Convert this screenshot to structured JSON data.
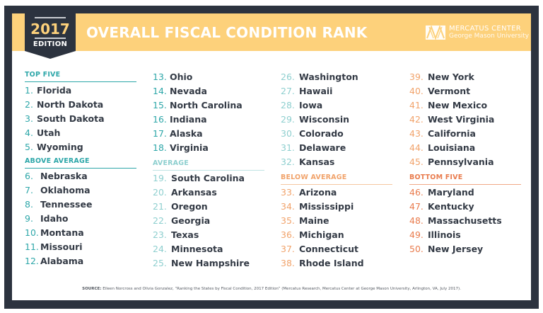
{
  "badge": {
    "year": "2017",
    "edition": "EDITION"
  },
  "title": "OVERALL FISCAL CONDITION RANK",
  "logo": {
    "icon": "mercatus-logo-icon",
    "line1": "MERCATUS CENTER",
    "line2": "George Mason University"
  },
  "colors": {
    "frame": "#2c333f",
    "band": "#fdd17b",
    "top_five": "#2ea7a9",
    "above_average": "#2ea7a9",
    "average": "#8ecfcf",
    "below_average": "#f1a36b",
    "bottom_five": "#e97c4e",
    "state_text": "#333a45"
  },
  "sections": {
    "top_five": {
      "label": "TOP FIVE",
      "items": [
        {
          "rank": "1.",
          "state": "Florida"
        },
        {
          "rank": "2.",
          "state": "North Dakota"
        },
        {
          "rank": "3.",
          "state": "South Dakota"
        },
        {
          "rank": "4.",
          "state": "Utah"
        },
        {
          "rank": "5.",
          "state": "Wyoming"
        }
      ]
    },
    "above_average": {
      "label": "ABOVE AVERAGE",
      "items": [
        {
          "rank": "6.",
          "state": "Nebraska"
        },
        {
          "rank": "7.",
          "state": "Oklahoma"
        },
        {
          "rank": "8.",
          "state": "Tennessee"
        },
        {
          "rank": "9.",
          "state": "Idaho"
        },
        {
          "rank": "10.",
          "state": "Montana"
        },
        {
          "rank": "11.",
          "state": "Missouri"
        },
        {
          "rank": "12.",
          "state": "Alabama"
        },
        {
          "rank": "13.",
          "state": "Ohio"
        },
        {
          "rank": "14.",
          "state": "Nevada"
        },
        {
          "rank": "15.",
          "state": "North Carolina"
        },
        {
          "rank": "16.",
          "state": "Indiana"
        },
        {
          "rank": "17.",
          "state": "Alaska"
        },
        {
          "rank": "18.",
          "state": "Virginia"
        }
      ]
    },
    "average": {
      "label": "AVERAGE",
      "items": [
        {
          "rank": "19.",
          "state": "South Carolina"
        },
        {
          "rank": "20.",
          "state": "Arkansas"
        },
        {
          "rank": "21.",
          "state": "Oregon"
        },
        {
          "rank": "22.",
          "state": "Georgia"
        },
        {
          "rank": "23.",
          "state": "Texas"
        },
        {
          "rank": "24.",
          "state": "Minnesota"
        },
        {
          "rank": "25.",
          "state": "New Hampshire"
        },
        {
          "rank": "26.",
          "state": "Washington"
        },
        {
          "rank": "27.",
          "state": "Hawaii"
        },
        {
          "rank": "28.",
          "state": "Iowa"
        },
        {
          "rank": "29.",
          "state": "Wisconsin"
        },
        {
          "rank": "30.",
          "state": "Colorado"
        },
        {
          "rank": "31.",
          "state": "Delaware"
        },
        {
          "rank": "32.",
          "state": "Kansas"
        }
      ]
    },
    "below_average": {
      "label": "BELOW AVERAGE",
      "items": [
        {
          "rank": "33.",
          "state": "Arizona"
        },
        {
          "rank": "34.",
          "state": "Mississippi"
        },
        {
          "rank": "35.",
          "state": "Maine"
        },
        {
          "rank": "36.",
          "state": "Michigan"
        },
        {
          "rank": "37.",
          "state": "Connecticut"
        },
        {
          "rank": "38.",
          "state": "Rhode Island"
        },
        {
          "rank": "39.",
          "state": "New York"
        },
        {
          "rank": "40.",
          "state": "Vermont"
        },
        {
          "rank": "41.",
          "state": "New Mexico"
        },
        {
          "rank": "42.",
          "state": "West Virginia"
        },
        {
          "rank": "43.",
          "state": "California"
        },
        {
          "rank": "44.",
          "state": "Louisiana"
        },
        {
          "rank": "45.",
          "state": "Pennsylvania"
        }
      ]
    },
    "bottom_five": {
      "label": "BOTTOM FIVE",
      "items": [
        {
          "rank": "46.",
          "state": "Maryland"
        },
        {
          "rank": "47.",
          "state": "Kentucky"
        },
        {
          "rank": "48.",
          "state": "Massachusetts"
        },
        {
          "rank": "49.",
          "state": "Illinois"
        },
        {
          "rank": "50.",
          "state": "New Jersey"
        }
      ]
    }
  },
  "source": {
    "label": "SOURCE:",
    "text": "Eileen Norcross and Olivia Gonzalez, “Ranking the States by Fiscal Condition, 2017 Edition” (Mercatus Research, Mercatus Center at George Mason University, Arlington, VA, July 2017)."
  }
}
